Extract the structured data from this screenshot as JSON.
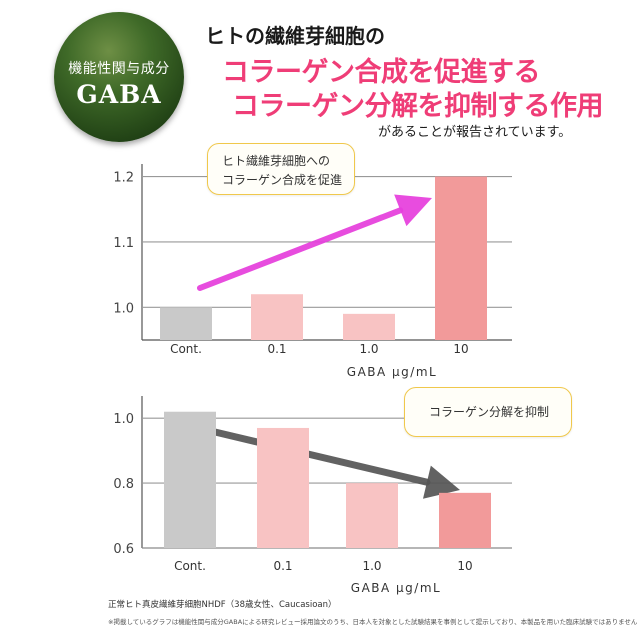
{
  "badge": {
    "line1": "機能性関与成分",
    "line2": "GABA"
  },
  "headline": {
    "line1": "ヒトの繊維芽細胞の",
    "line2": "コラーゲン合成を促進する",
    "line3": "コラーゲン分解を抑制する作用",
    "line4": "があることが報告されています。"
  },
  "colors": {
    "accent": "#ef3d77",
    "control_bar": "#c9c9c9",
    "light_bar": "#f8c3c3",
    "dark_bar": "#f29a9a",
    "arrow_top": "#e63ddc",
    "arrow_bottom": "#555555",
    "badge": "#2c5a1a"
  },
  "chart_data": [
    {
      "type": "bar",
      "callout": "ヒト繊維芽細胞への\nコラーゲン合成を促進",
      "categories": [
        "Cont.",
        "0.1",
        "1.0",
        "10"
      ],
      "values": [
        1.0,
        1.02,
        0.99,
        1.2
      ],
      "xlabel": "GABA μg/mL",
      "ylim": [
        0.95,
        1.21
      ],
      "yticks": [
        "1.0",
        "1.1",
        "1.2"
      ],
      "ytick_values": [
        1.0,
        1.1,
        1.2
      ],
      "grid": true
    },
    {
      "type": "bar",
      "callout": "コラーゲン分解を抑制",
      "categories": [
        "Cont.",
        "0.1",
        "1.0",
        "10"
      ],
      "values": [
        1.02,
        0.97,
        0.8,
        0.77
      ],
      "xlabel": "GABA μg/mL",
      "ylim": [
        0.6,
        1.05
      ],
      "yticks": [
        "0.6",
        "0.8",
        "1.0"
      ],
      "ytick_values": [
        0.6,
        0.8,
        1.0
      ],
      "grid": true
    }
  ],
  "footnote": {
    "line1": "正常ヒト真皮繊維芽細胞NHDF（38歳女性、Caucasioan）",
    "line2": "※掲載しているグラフは機能性関与成分GABAによる研究レビュー採用論文のうち、日本人を対象とした試験結果を事例として提示しており、本製品を用いた臨床試験ではありません"
  }
}
